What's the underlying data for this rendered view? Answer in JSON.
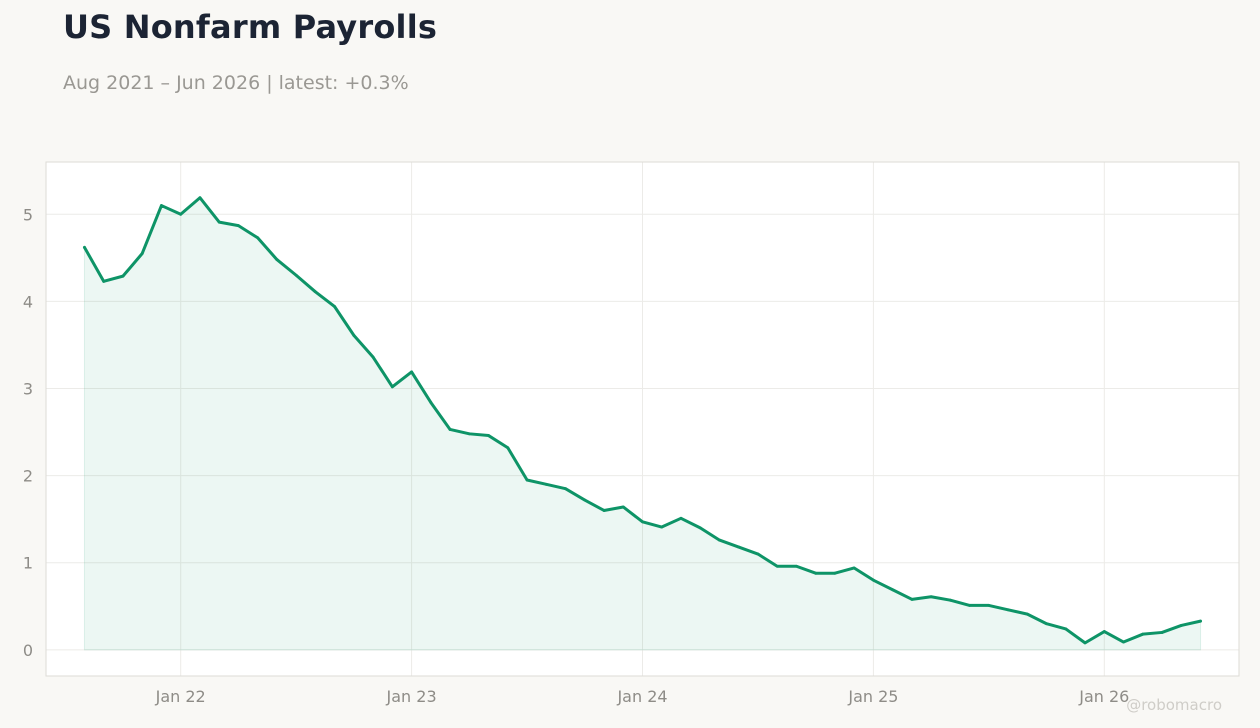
{
  "title": "US Nonfarm Payrolls",
  "subtitle": "Aug 2021 – Jun 2026 | latest: +0.3%",
  "watermark": "@robomacro",
  "colors": {
    "line": "#0e9467",
    "fill": "#0e9467",
    "grid": "#ecebe8",
    "frame": "#dddbd6",
    "background": "#f9f8f5",
    "plot_background": "#ffffff"
  },
  "chart_data": {
    "type": "area",
    "title": "US Nonfarm Payrolls",
    "subtitle": "Aug 2021 – Jun 2026 | latest: +0.3%",
    "xlabel": "",
    "ylabel": "",
    "ylim": [
      -0.3,
      5.6
    ],
    "xlim": [
      "2021-06",
      "2026-08"
    ],
    "yticks": [
      0,
      1,
      2,
      3,
      4,
      5
    ],
    "xticks": [
      {
        "date": "2022-01",
        "label": "Jan 22"
      },
      {
        "date": "2023-01",
        "label": "Jan 23"
      },
      {
        "date": "2024-01",
        "label": "Jan 24"
      },
      {
        "date": "2025-01",
        "label": "Jan 25"
      },
      {
        "date": "2026-01",
        "label": "Jan 26"
      }
    ],
    "grid": true,
    "legend": "none",
    "series": [
      {
        "x": [
          "2021-08",
          "2021-09",
          "2021-10",
          "2021-11",
          "2021-12",
          "2022-01",
          "2022-02",
          "2022-03",
          "2022-04",
          "2022-05",
          "2022-06",
          "2022-07",
          "2022-08",
          "2022-09",
          "2022-10",
          "2022-11",
          "2022-12",
          "2023-01",
          "2023-02",
          "2023-03",
          "2023-04",
          "2023-05",
          "2023-06",
          "2023-07",
          "2023-08",
          "2023-09",
          "2023-10",
          "2023-11",
          "2023-12",
          "2024-01",
          "2024-02",
          "2024-03",
          "2024-04",
          "2024-05",
          "2024-06",
          "2024-07",
          "2024-08",
          "2024-09",
          "2024-10",
          "2024-11",
          "2024-12",
          "2025-01",
          "2025-02",
          "2025-03",
          "2025-04",
          "2025-05",
          "2025-06",
          "2025-07",
          "2025-08",
          "2025-09",
          "2025-10",
          "2025-11",
          "2025-12",
          "2026-01",
          "2026-02",
          "2026-03",
          "2026-04",
          "2026-05",
          "2026-06"
        ],
        "values": [
          4.62,
          4.23,
          4.29,
          4.55,
          5.1,
          5.0,
          5.19,
          4.91,
          4.87,
          4.73,
          4.48,
          4.3,
          4.11,
          3.94,
          3.61,
          3.36,
          3.02,
          3.19,
          2.84,
          2.53,
          2.48,
          2.46,
          2.32,
          1.95,
          1.9,
          1.85,
          1.72,
          1.6,
          1.64,
          1.47,
          1.41,
          1.51,
          1.4,
          1.26,
          1.18,
          1.1,
          0.96,
          0.96,
          0.88,
          0.88,
          0.94,
          0.8,
          0.69,
          0.58,
          0.61,
          0.57,
          0.51,
          0.51,
          0.46,
          0.41,
          0.3,
          0.24,
          0.08,
          0.21,
          0.09,
          0.18,
          0.2,
          0.28,
          0.33
        ]
      }
    ]
  }
}
